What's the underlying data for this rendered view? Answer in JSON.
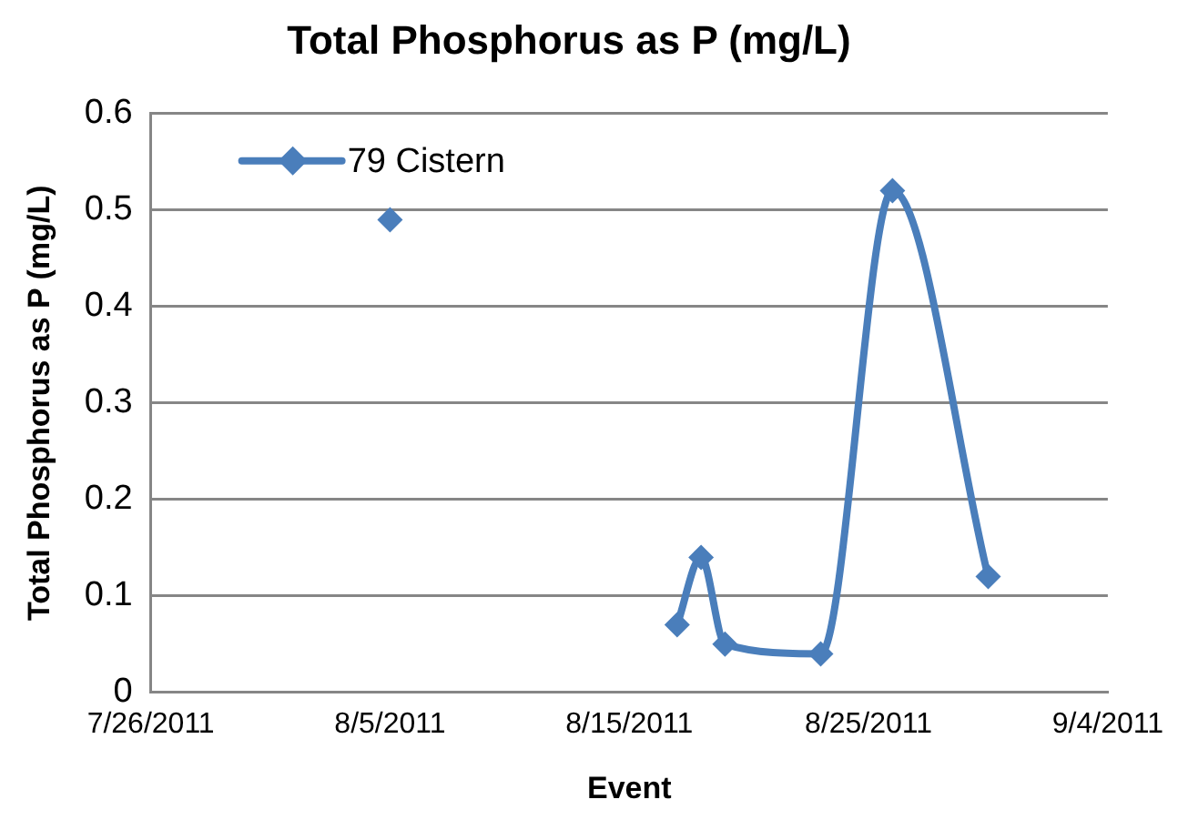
{
  "chart_data": {
    "type": "line",
    "title": "Total Phosphorus as P (mg/L)",
    "xlabel": "Event",
    "ylabel": "Total Phosphorus as P (mg/L)",
    "x": [
      "2011-08-05",
      "2011-08-11",
      "2011-08-17",
      "2011-08-18",
      "2011-08-19",
      "2011-08-23",
      "2011-08-26",
      "2011-08-30"
    ],
    "series": [
      {
        "name": "79 Cistern",
        "color": "#4a7ebb",
        "values": [
          0.49,
          null,
          0.07,
          0.14,
          0.05,
          0.04,
          0.52,
          0.12
        ]
      }
    ],
    "xlim": [
      "2011-07-26",
      "2011-09-04"
    ],
    "xticks": [
      {
        "value": "2011-07-26",
        "label": "7/26/2011"
      },
      {
        "value": "2011-08-05",
        "label": "8/5/2011"
      },
      {
        "value": "2011-08-15",
        "label": "8/15/2011"
      },
      {
        "value": "2011-08-25",
        "label": "8/25/2011"
      },
      {
        "value": "2011-09-04",
        "label": "9/4/2011"
      }
    ],
    "ylim": [
      0,
      0.6
    ],
    "yticks": [
      0,
      0.1,
      0.2,
      0.3,
      0.4,
      0.5,
      0.6
    ],
    "grid": "y",
    "legend": "top left",
    "marker": "diamond",
    "line_style": "solid"
  }
}
